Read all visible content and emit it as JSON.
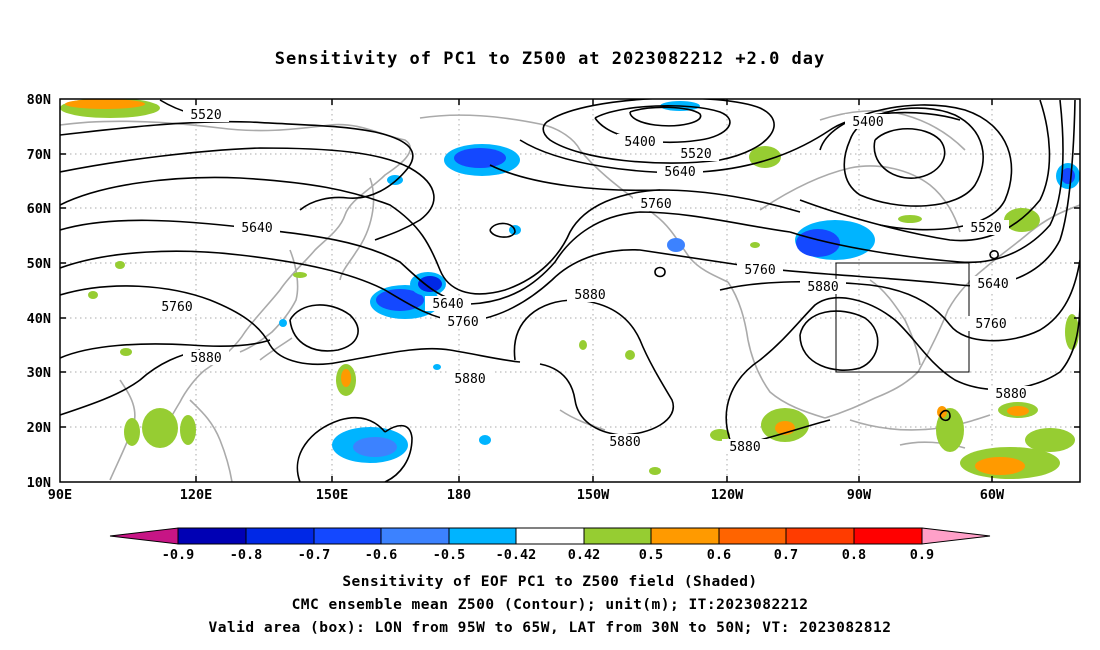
{
  "title": "Sensitivity of PC1 to Z500 at 2023082212 +2.0 day",
  "map": {
    "lat_labels": [
      "80N",
      "70N",
      "60N",
      "50N",
      "40N",
      "30N",
      "20N",
      "10N"
    ],
    "lon_labels": [
      "90E",
      "120E",
      "150E",
      "180",
      "150W",
      "120W",
      "90W",
      "60W"
    ],
    "contour_labels": [
      {
        "text": "5520"
      },
      {
        "text": "5400"
      },
      {
        "text": "5520"
      },
      {
        "text": "5640"
      },
      {
        "text": "5400"
      },
      {
        "text": "5520"
      },
      {
        "text": "5640"
      },
      {
        "text": "5760"
      },
      {
        "text": "5760"
      },
      {
        "text": "5640"
      },
      {
        "text": "5760"
      },
      {
        "text": "5640"
      },
      {
        "text": "5880"
      },
      {
        "text": "5880"
      },
      {
        "text": "5880"
      },
      {
        "text": "5880"
      },
      {
        "text": "5760"
      },
      {
        "text": "5880"
      },
      {
        "text": "5880"
      },
      {
        "text": "5760"
      }
    ],
    "valid_box": {
      "lon_from": "95W",
      "lon_to": "65W",
      "lat_from": "30N",
      "lat_to": "50N"
    },
    "colors": {
      "contour": "#000000",
      "coast": "#aaaaaa",
      "grid": "#aaaaaa"
    }
  },
  "colorbar": {
    "colors": [
      "#c71585",
      "#0000b4",
      "#0028e6",
      "#1448ff",
      "#3c82ff",
      "#00b4ff",
      "#ffffff",
      "#96cd32",
      "#ff9a00",
      "#ff6400",
      "#ff3c00",
      "#ff0000",
      "#ffa0c8"
    ],
    "labels": [
      "-0.9",
      "-0.8",
      "-0.7",
      "-0.6",
      "-0.5",
      "-0.42",
      "0.42",
      "0.5",
      "0.6",
      "0.7",
      "0.8",
      "0.9"
    ]
  },
  "captions": {
    "line1": "Sensitivity of EOF PC1 to Z500 field (Shaded)",
    "line2": "CMC ensemble mean Z500 (Contour); unit(m); IT:2023082212",
    "line3": "Valid area (box): LON from 95W to 65W, LAT from 30N to 50N; VT: 2023082812"
  }
}
